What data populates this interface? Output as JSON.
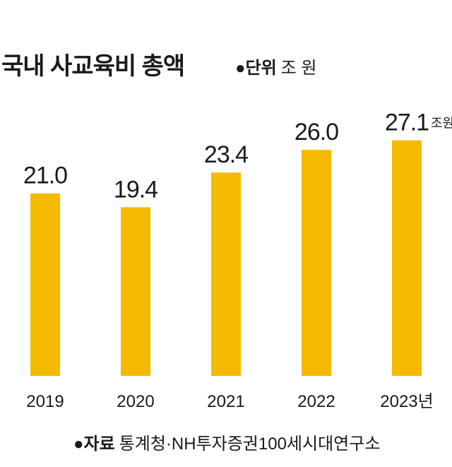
{
  "title": "국내 사교육비 총액",
  "unit": {
    "bullet": "●",
    "label": "단위",
    "value": "조 원"
  },
  "source": {
    "bullet": "●",
    "label": "자료",
    "value": "통계청·NH투자증권100세시대연구소"
  },
  "colors": {
    "bar": "#F5BA00",
    "text": "#1a1a1a"
  },
  "chart_data": {
    "type": "bar",
    "categories": [
      "2019",
      "2020",
      "2021",
      "2022",
      "2023년"
    ],
    "values": [
      21.0,
      19.4,
      23.4,
      26.0,
      27.1
    ],
    "value_labels": [
      "21.0",
      "19.4",
      "23.4",
      "26.0",
      "27.1"
    ],
    "last_value_suffix": "조원",
    "title": "국내 사교육비 총액",
    "unit": "조 원",
    "grid": false,
    "legend": "none"
  }
}
